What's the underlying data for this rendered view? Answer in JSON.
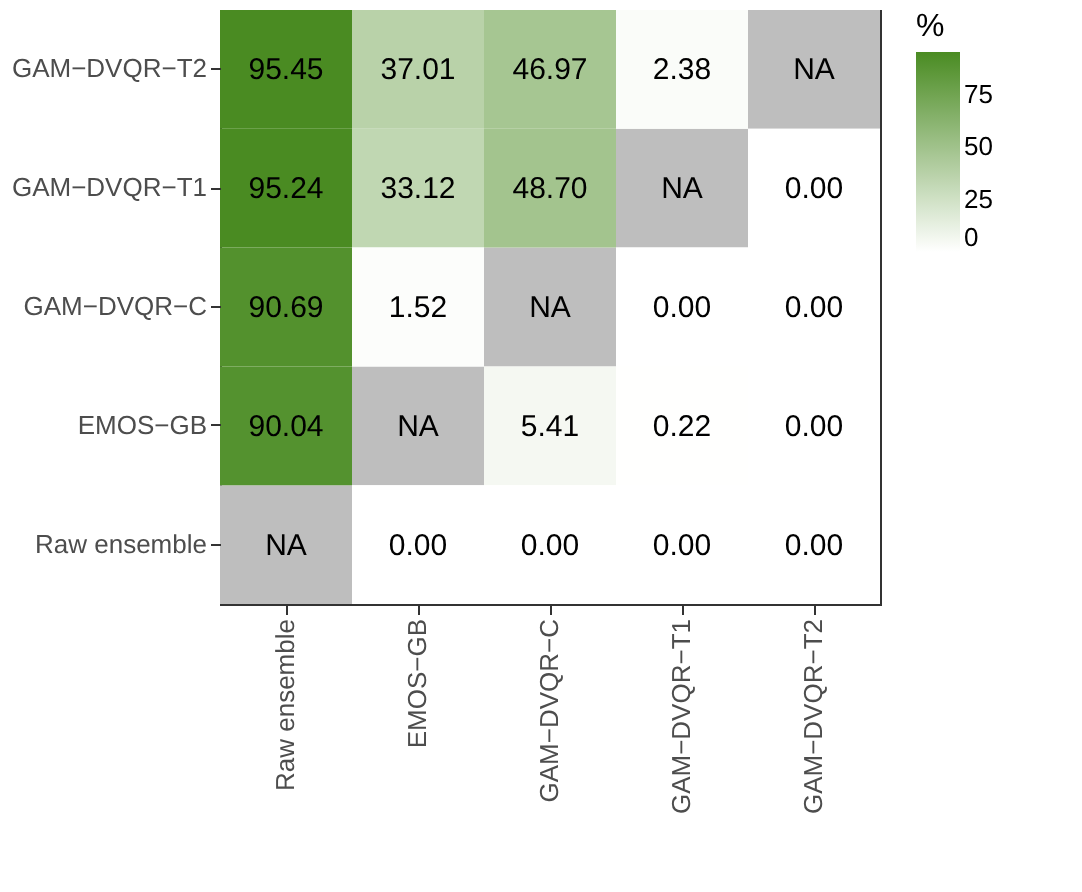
{
  "chart_data": {
    "type": "heatmap",
    "legend_title": "%",
    "categories": [
      "Raw ensemble",
      "EMOS−GB",
      "GAM−DVQR−C",
      "GAM−DVQR−T1",
      "GAM−DVQR−T2"
    ],
    "y_categories": [
      "GAM−DVQR−T2",
      "GAM−DVQR−T1",
      "GAM−DVQR−C",
      "EMOS−GB",
      "Raw ensemble"
    ],
    "cells": [
      [
        95.45,
        37.01,
        46.97,
        2.38,
        null
      ],
      [
        95.24,
        33.12,
        48.7,
        null,
        0
      ],
      [
        90.69,
        1.52,
        null,
        0,
        0
      ],
      [
        90.04,
        null,
        5.41,
        0.22,
        0
      ],
      [
        null,
        0,
        0,
        0,
        0
      ]
    ],
    "cell_labels": [
      [
        "95.45",
        "37.01",
        "46.97",
        "2.38",
        "NA"
      ],
      [
        "95.24",
        "33.12",
        "48.70",
        "NA",
        "0.00"
      ],
      [
        "90.69",
        "1.52",
        "NA",
        "0.00",
        "0.00"
      ],
      [
        "90.04",
        "NA",
        "5.41",
        "0.22",
        "0.00"
      ],
      [
        "NA",
        "0.00",
        "0.00",
        "0.00",
        "0.00"
      ]
    ],
    "clim": [
      0,
      95.45
    ],
    "cticks": [
      0,
      25,
      50,
      75
    ]
  }
}
